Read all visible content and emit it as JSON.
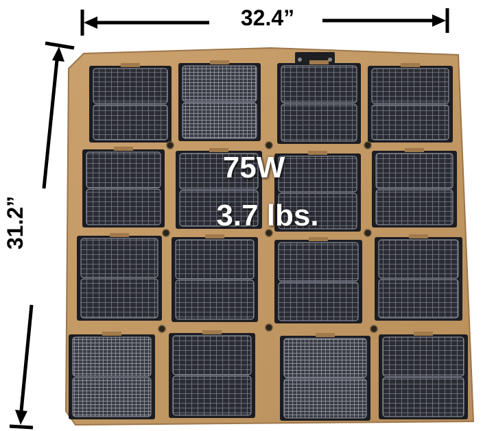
{
  "dimensions": {
    "width_label": "32.4”",
    "height_label": "31.2”"
  },
  "specs": {
    "power": "75W",
    "weight": "3.7 lbs."
  },
  "colors": {
    "fabric": "#c49a66",
    "fabric_dark": "#9c764a",
    "cell": "#2b2c33",
    "cell_grid": "#8d93a3",
    "arrow": "#000000",
    "text_overlay": "#ffffff"
  }
}
